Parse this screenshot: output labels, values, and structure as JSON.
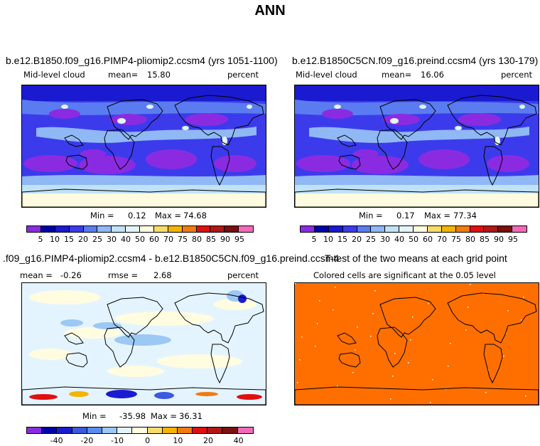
{
  "main_title": "ANN",
  "chart_data": [
    {
      "type": "heatmap",
      "title": "b.e12.B1850.f09_g16.PIMP4-pliomip2.ccsm4 (yrs 1051-1100)",
      "left_label": "Mid-level cloud",
      "stat_label": "mean=",
      "stat_value": "15.80",
      "units": "percent",
      "min_label": "Min =",
      "min_value": "0.12",
      "max_label": "Max =",
      "max_value": "74.68",
      "levels": [
        "5",
        "10",
        "15",
        "20",
        "25",
        "30",
        "40",
        "50",
        "60",
        "70",
        "75",
        "80",
        "85",
        "90",
        "95"
      ],
      "colors": [
        "#8a2be2",
        "#0000a8",
        "#1a1ad0",
        "#3b3bec",
        "#5a7cf0",
        "#8fb8f4",
        "#bfe2f7",
        "#e4f4f7",
        "#fffbe0",
        "#f8dc6a",
        "#f4b400",
        "#f07b10",
        "#e01010",
        "#b01818",
        "#7a1010",
        "#f06ab8"
      ]
    },
    {
      "type": "heatmap",
      "title": "b.e12.B1850C5CN.f09_g16.preind.ccsm4 (yrs 130-179)",
      "left_label": "Mid-level cloud",
      "stat_label": "mean=",
      "stat_value": "16.06",
      "units": "percent",
      "min_label": "Min =",
      "min_value": "0.17",
      "max_label": "Max =",
      "max_value": "77.34",
      "levels": [
        "5",
        "10",
        "15",
        "20",
        "25",
        "30",
        "40",
        "50",
        "60",
        "70",
        "75",
        "80",
        "85",
        "90",
        "95"
      ],
      "colors": [
        "#8a2be2",
        "#0000a8",
        "#1a1ad0",
        "#3b3bec",
        "#5a7cf0",
        "#8fb8f4",
        "#bfe2f7",
        "#e4f4f7",
        "#fffbe0",
        "#f8dc6a",
        "#f4b400",
        "#f07b10",
        "#e01010",
        "#b01818",
        "#7a1010",
        "#f06ab8"
      ]
    },
    {
      "type": "heatmap",
      "title": ".f09_g16.PIMP4-pliomip2.ccsm4 - b.e12.B1850C5CN.f09_g16.preind.ccsm4",
      "left_label": "mean =",
      "left_value": "-0.26",
      "stat_label": "rmse =",
      "stat_value": "2.68",
      "units": "percent",
      "min_label": "Min =",
      "min_value": "-35.98",
      "max_label": "Max =",
      "max_value": "36.31",
      "levels": [
        "-40",
        "-20",
        "-10",
        "0",
        "10",
        "20",
        "40"
      ],
      "colors": [
        "#8a2be2",
        "#0000a8",
        "#1a1ad0",
        "#3b5ae0",
        "#5a8cf0",
        "#9cc8f4",
        "#e4f4ff",
        "#fffce0",
        "#f8dc6a",
        "#f4b400",
        "#f07b10",
        "#e01010",
        "#b01818",
        "#7a1010",
        "#f06ab8"
      ]
    },
    {
      "type": "heatmap",
      "title": "T-test of the two means at each grid point",
      "subtitle": "Colored cells are significant at the 0.05 level",
      "fill_color": "#ff6f00"
    }
  ]
}
